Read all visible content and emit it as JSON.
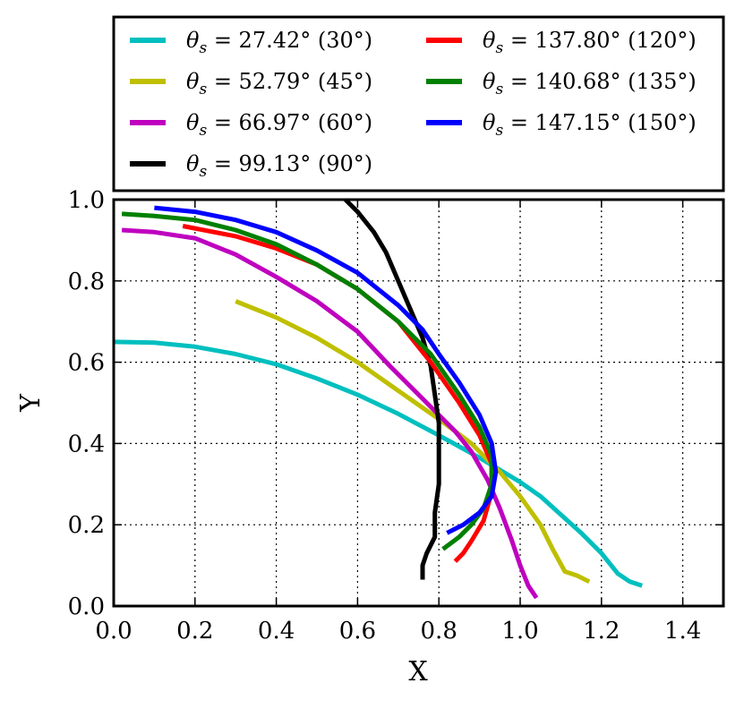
{
  "chart_data": {
    "type": "line",
    "title": "",
    "xlabel": "X",
    "ylabel": "Y",
    "xlim": [
      0.0,
      1.5
    ],
    "ylim": [
      0.0,
      1.0
    ],
    "grid": true,
    "legend_position": "top",
    "xticks": [
      0.0,
      0.2,
      0.4,
      0.6,
      0.8,
      1.0,
      1.2,
      1.4
    ],
    "yticks": [
      0.0,
      0.2,
      0.4,
      0.6,
      0.8,
      1.0
    ],
    "xtick_labels": [
      "0.0",
      "0.2",
      "0.4",
      "0.6",
      "0.8",
      "1.0",
      "1.2",
      "1.4"
    ],
    "ytick_labels": [
      "0.0",
      "0.2",
      "0.4",
      "0.6",
      "0.8",
      "1.0"
    ],
    "series": [
      {
        "name": "θs = 27.42° (30°)",
        "symbol": "θ",
        "sub": "s",
        "rest": " = 27.42° (30°)",
        "color": "#00bfbf",
        "points": [
          [
            0.0,
            0.65
          ],
          [
            0.1,
            0.648
          ],
          [
            0.2,
            0.638
          ],
          [
            0.3,
            0.62
          ],
          [
            0.4,
            0.595
          ],
          [
            0.5,
            0.56
          ],
          [
            0.6,
            0.52
          ],
          [
            0.7,
            0.473
          ],
          [
            0.8,
            0.42
          ],
          [
            0.9,
            0.365
          ],
          [
            1.0,
            0.305
          ],
          [
            1.05,
            0.27
          ],
          [
            1.1,
            0.225
          ],
          [
            1.15,
            0.18
          ],
          [
            1.2,
            0.13
          ],
          [
            1.24,
            0.08
          ],
          [
            1.27,
            0.06
          ],
          [
            1.3,
            0.05
          ]
        ]
      },
      {
        "name": "θs = 52.79° (45°)",
        "symbol": "θ",
        "sub": "s",
        "rest": " = 52.79° (45°)",
        "color": "#bfbf00",
        "points": [
          [
            0.3,
            0.75
          ],
          [
            0.4,
            0.71
          ],
          [
            0.5,
            0.66
          ],
          [
            0.6,
            0.6
          ],
          [
            0.7,
            0.53
          ],
          [
            0.8,
            0.46
          ],
          [
            0.88,
            0.4
          ],
          [
            0.95,
            0.33
          ],
          [
            1.0,
            0.27
          ],
          [
            1.05,
            0.2
          ],
          [
            1.08,
            0.14
          ],
          [
            1.11,
            0.085
          ],
          [
            1.14,
            0.075
          ],
          [
            1.17,
            0.06
          ]
        ]
      },
      {
        "name": "θs = 66.97° (60°)",
        "symbol": "θ",
        "sub": "s",
        "rest": " = 66.97° (60°)",
        "color": "#bf00bf",
        "points": [
          [
            0.02,
            0.925
          ],
          [
            0.1,
            0.92
          ],
          [
            0.2,
            0.905
          ],
          [
            0.3,
            0.865
          ],
          [
            0.4,
            0.81
          ],
          [
            0.5,
            0.75
          ],
          [
            0.6,
            0.675
          ],
          [
            0.68,
            0.59
          ],
          [
            0.75,
            0.52
          ],
          [
            0.8,
            0.47
          ],
          [
            0.84,
            0.43
          ],
          [
            0.88,
            0.38
          ],
          [
            0.92,
            0.31
          ],
          [
            0.95,
            0.24
          ],
          [
            0.98,
            0.16
          ],
          [
            1.0,
            0.1
          ],
          [
            1.02,
            0.05
          ],
          [
            1.04,
            0.02
          ]
        ]
      },
      {
        "name": "θs = 99.13° (90°)",
        "symbol": "θ",
        "sub": "s",
        "rest": " = 99.13° (90°)",
        "color": "#000000",
        "points": [
          [
            0.57,
            1.0
          ],
          [
            0.6,
            0.97
          ],
          [
            0.64,
            0.92
          ],
          [
            0.67,
            0.87
          ],
          [
            0.7,
            0.8
          ],
          [
            0.73,
            0.73
          ],
          [
            0.76,
            0.66
          ],
          [
            0.78,
            0.59
          ],
          [
            0.79,
            0.52
          ],
          [
            0.8,
            0.45
          ],
          [
            0.8,
            0.38
          ],
          [
            0.8,
            0.3
          ],
          [
            0.79,
            0.23
          ],
          [
            0.79,
            0.17
          ],
          [
            0.77,
            0.13
          ],
          [
            0.76,
            0.1
          ],
          [
            0.76,
            0.065
          ]
        ]
      },
      {
        "name": "θs = 137.80° (120°)",
        "symbol": "θ",
        "sub": "s",
        "rest": " = 137.80° (120°)",
        "color": "#ff0000",
        "points": [
          [
            0.17,
            0.935
          ],
          [
            0.3,
            0.91
          ],
          [
            0.4,
            0.88
          ],
          [
            0.5,
            0.84
          ],
          [
            0.6,
            0.78
          ],
          [
            0.7,
            0.7
          ],
          [
            0.78,
            0.6
          ],
          [
            0.85,
            0.5
          ],
          [
            0.9,
            0.42
          ],
          [
            0.93,
            0.35
          ],
          [
            0.93,
            0.28
          ],
          [
            0.91,
            0.21
          ],
          [
            0.88,
            0.16
          ],
          [
            0.86,
            0.13
          ],
          [
            0.84,
            0.11
          ]
        ]
      },
      {
        "name": "θs = 140.68° (135°)",
        "symbol": "θ",
        "sub": "s",
        "rest": " = 140.68° (135°)",
        "color": "#008000",
        "points": [
          [
            0.02,
            0.965
          ],
          [
            0.1,
            0.96
          ],
          [
            0.2,
            0.95
          ],
          [
            0.3,
            0.925
          ],
          [
            0.4,
            0.89
          ],
          [
            0.5,
            0.84
          ],
          [
            0.6,
            0.78
          ],
          [
            0.7,
            0.7
          ],
          [
            0.78,
            0.62
          ],
          [
            0.85,
            0.52
          ],
          [
            0.9,
            0.44
          ],
          [
            0.93,
            0.37
          ],
          [
            0.93,
            0.3
          ],
          [
            0.91,
            0.24
          ],
          [
            0.88,
            0.2
          ],
          [
            0.85,
            0.17
          ],
          [
            0.81,
            0.14
          ]
        ]
      },
      {
        "name": "θs = 147.15° (150°)",
        "symbol": "θ",
        "sub": "s",
        "rest": " = 147.15° (150°)",
        "color": "#0000ff",
        "points": [
          [
            0.1,
            0.98
          ],
          [
            0.2,
            0.97
          ],
          [
            0.3,
            0.95
          ],
          [
            0.4,
            0.92
          ],
          [
            0.5,
            0.875
          ],
          [
            0.6,
            0.82
          ],
          [
            0.7,
            0.74
          ],
          [
            0.76,
            0.68
          ],
          [
            0.8,
            0.62
          ],
          [
            0.85,
            0.55
          ],
          [
            0.9,
            0.47
          ],
          [
            0.93,
            0.4
          ],
          [
            0.94,
            0.33
          ],
          [
            0.93,
            0.27
          ],
          [
            0.9,
            0.23
          ],
          [
            0.86,
            0.2
          ],
          [
            0.82,
            0.18
          ]
        ]
      }
    ]
  }
}
